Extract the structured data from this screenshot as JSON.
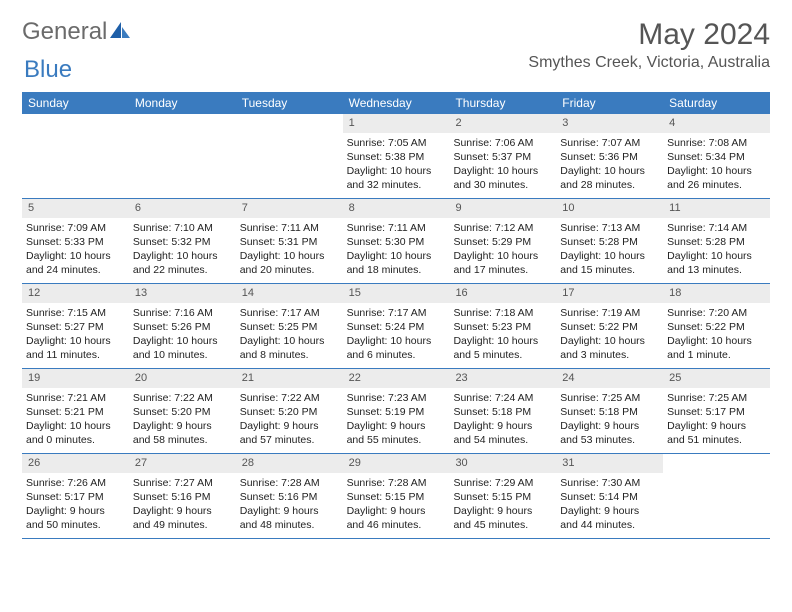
{
  "logo": {
    "text1": "General",
    "text2": "Blue"
  },
  "title": "May 2024",
  "location": "Smythes Creek, Victoria, Australia",
  "colors": {
    "header_bar": "#3a7bbf",
    "daynum_bg": "#ececec",
    "text": "#333333",
    "logo_gray": "#6b6b6b",
    "logo_blue": "#3a7bbf"
  },
  "weekdays": [
    "Sunday",
    "Monday",
    "Tuesday",
    "Wednesday",
    "Thursday",
    "Friday",
    "Saturday"
  ],
  "weeks": [
    [
      {
        "n": "",
        "sunrise": "",
        "sunset": "",
        "day1": "",
        "day2": ""
      },
      {
        "n": "",
        "sunrise": "",
        "sunset": "",
        "day1": "",
        "day2": ""
      },
      {
        "n": "",
        "sunrise": "",
        "sunset": "",
        "day1": "",
        "day2": ""
      },
      {
        "n": "1",
        "sunrise": "Sunrise: 7:05 AM",
        "sunset": "Sunset: 5:38 PM",
        "day1": "Daylight: 10 hours",
        "day2": "and 32 minutes."
      },
      {
        "n": "2",
        "sunrise": "Sunrise: 7:06 AM",
        "sunset": "Sunset: 5:37 PM",
        "day1": "Daylight: 10 hours",
        "day2": "and 30 minutes."
      },
      {
        "n": "3",
        "sunrise": "Sunrise: 7:07 AM",
        "sunset": "Sunset: 5:36 PM",
        "day1": "Daylight: 10 hours",
        "day2": "and 28 minutes."
      },
      {
        "n": "4",
        "sunrise": "Sunrise: 7:08 AM",
        "sunset": "Sunset: 5:34 PM",
        "day1": "Daylight: 10 hours",
        "day2": "and 26 minutes."
      }
    ],
    [
      {
        "n": "5",
        "sunrise": "Sunrise: 7:09 AM",
        "sunset": "Sunset: 5:33 PM",
        "day1": "Daylight: 10 hours",
        "day2": "and 24 minutes."
      },
      {
        "n": "6",
        "sunrise": "Sunrise: 7:10 AM",
        "sunset": "Sunset: 5:32 PM",
        "day1": "Daylight: 10 hours",
        "day2": "and 22 minutes."
      },
      {
        "n": "7",
        "sunrise": "Sunrise: 7:11 AM",
        "sunset": "Sunset: 5:31 PM",
        "day1": "Daylight: 10 hours",
        "day2": "and 20 minutes."
      },
      {
        "n": "8",
        "sunrise": "Sunrise: 7:11 AM",
        "sunset": "Sunset: 5:30 PM",
        "day1": "Daylight: 10 hours",
        "day2": "and 18 minutes."
      },
      {
        "n": "9",
        "sunrise": "Sunrise: 7:12 AM",
        "sunset": "Sunset: 5:29 PM",
        "day1": "Daylight: 10 hours",
        "day2": "and 17 minutes."
      },
      {
        "n": "10",
        "sunrise": "Sunrise: 7:13 AM",
        "sunset": "Sunset: 5:28 PM",
        "day1": "Daylight: 10 hours",
        "day2": "and 15 minutes."
      },
      {
        "n": "11",
        "sunrise": "Sunrise: 7:14 AM",
        "sunset": "Sunset: 5:28 PM",
        "day1": "Daylight: 10 hours",
        "day2": "and 13 minutes."
      }
    ],
    [
      {
        "n": "12",
        "sunrise": "Sunrise: 7:15 AM",
        "sunset": "Sunset: 5:27 PM",
        "day1": "Daylight: 10 hours",
        "day2": "and 11 minutes."
      },
      {
        "n": "13",
        "sunrise": "Sunrise: 7:16 AM",
        "sunset": "Sunset: 5:26 PM",
        "day1": "Daylight: 10 hours",
        "day2": "and 10 minutes."
      },
      {
        "n": "14",
        "sunrise": "Sunrise: 7:17 AM",
        "sunset": "Sunset: 5:25 PM",
        "day1": "Daylight: 10 hours",
        "day2": "and 8 minutes."
      },
      {
        "n": "15",
        "sunrise": "Sunrise: 7:17 AM",
        "sunset": "Sunset: 5:24 PM",
        "day1": "Daylight: 10 hours",
        "day2": "and 6 minutes."
      },
      {
        "n": "16",
        "sunrise": "Sunrise: 7:18 AM",
        "sunset": "Sunset: 5:23 PM",
        "day1": "Daylight: 10 hours",
        "day2": "and 5 minutes."
      },
      {
        "n": "17",
        "sunrise": "Sunrise: 7:19 AM",
        "sunset": "Sunset: 5:22 PM",
        "day1": "Daylight: 10 hours",
        "day2": "and 3 minutes."
      },
      {
        "n": "18",
        "sunrise": "Sunrise: 7:20 AM",
        "sunset": "Sunset: 5:22 PM",
        "day1": "Daylight: 10 hours",
        "day2": "and 1 minute."
      }
    ],
    [
      {
        "n": "19",
        "sunrise": "Sunrise: 7:21 AM",
        "sunset": "Sunset: 5:21 PM",
        "day1": "Daylight: 10 hours",
        "day2": "and 0 minutes."
      },
      {
        "n": "20",
        "sunrise": "Sunrise: 7:22 AM",
        "sunset": "Sunset: 5:20 PM",
        "day1": "Daylight: 9 hours",
        "day2": "and 58 minutes."
      },
      {
        "n": "21",
        "sunrise": "Sunrise: 7:22 AM",
        "sunset": "Sunset: 5:20 PM",
        "day1": "Daylight: 9 hours",
        "day2": "and 57 minutes."
      },
      {
        "n": "22",
        "sunrise": "Sunrise: 7:23 AM",
        "sunset": "Sunset: 5:19 PM",
        "day1": "Daylight: 9 hours",
        "day2": "and 55 minutes."
      },
      {
        "n": "23",
        "sunrise": "Sunrise: 7:24 AM",
        "sunset": "Sunset: 5:18 PM",
        "day1": "Daylight: 9 hours",
        "day2": "and 54 minutes."
      },
      {
        "n": "24",
        "sunrise": "Sunrise: 7:25 AM",
        "sunset": "Sunset: 5:18 PM",
        "day1": "Daylight: 9 hours",
        "day2": "and 53 minutes."
      },
      {
        "n": "25",
        "sunrise": "Sunrise: 7:25 AM",
        "sunset": "Sunset: 5:17 PM",
        "day1": "Daylight: 9 hours",
        "day2": "and 51 minutes."
      }
    ],
    [
      {
        "n": "26",
        "sunrise": "Sunrise: 7:26 AM",
        "sunset": "Sunset: 5:17 PM",
        "day1": "Daylight: 9 hours",
        "day2": "and 50 minutes."
      },
      {
        "n": "27",
        "sunrise": "Sunrise: 7:27 AM",
        "sunset": "Sunset: 5:16 PM",
        "day1": "Daylight: 9 hours",
        "day2": "and 49 minutes."
      },
      {
        "n": "28",
        "sunrise": "Sunrise: 7:28 AM",
        "sunset": "Sunset: 5:16 PM",
        "day1": "Daylight: 9 hours",
        "day2": "and 48 minutes."
      },
      {
        "n": "29",
        "sunrise": "Sunrise: 7:28 AM",
        "sunset": "Sunset: 5:15 PM",
        "day1": "Daylight: 9 hours",
        "day2": "and 46 minutes."
      },
      {
        "n": "30",
        "sunrise": "Sunrise: 7:29 AM",
        "sunset": "Sunset: 5:15 PM",
        "day1": "Daylight: 9 hours",
        "day2": "and 45 minutes."
      },
      {
        "n": "31",
        "sunrise": "Sunrise: 7:30 AM",
        "sunset": "Sunset: 5:14 PM",
        "day1": "Daylight: 9 hours",
        "day2": "and 44 minutes."
      },
      {
        "n": "",
        "sunrise": "",
        "sunset": "",
        "day1": "",
        "day2": ""
      }
    ]
  ]
}
